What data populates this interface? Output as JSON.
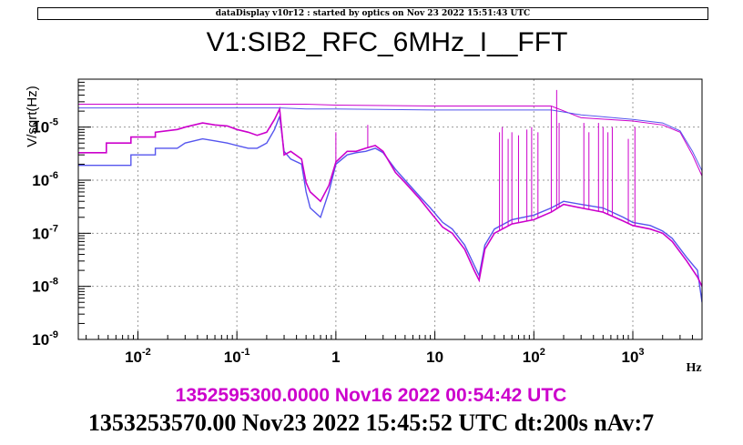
{
  "header": "dataDisplay v10r12 : started by optics on Nov 23 2022 15:51:43 UTC",
  "colors": {
    "reference": "#cc00cc",
    "current": "#5555ee"
  },
  "chart_data": {
    "type": "line",
    "title": "V1:SIB2_RFC_6MHz_I__FFT",
    "xlabel": "Hz",
    "ylabel": "V/sqrt(Hz)",
    "x_scale": "log",
    "y_scale": "log",
    "xlim": [
      0.0025,
      5000
    ],
    "ylim": [
      1e-09,
      8e-05
    ],
    "grid": true,
    "x_ticks": [
      0.01,
      0.1,
      1,
      10,
      100,
      1000
    ],
    "x_tick_labels": [
      {
        "base": "10",
        "exp": "-2"
      },
      {
        "base": "10",
        "exp": "-1"
      },
      {
        "base": "1",
        "exp": ""
      },
      {
        "base": "10",
        "exp": ""
      },
      {
        "base": "10",
        "exp": "2"
      },
      {
        "base": "10",
        "exp": "3"
      }
    ],
    "y_ticks": [
      1e-09,
      1e-08,
      1e-07,
      1e-06,
      1e-05
    ],
    "y_tick_labels": [
      {
        "base": "10",
        "exp": "-9"
      },
      {
        "base": "10",
        "exp": "-8"
      },
      {
        "base": "10",
        "exp": "-7"
      },
      {
        "base": "10",
        "exp": "-6"
      },
      {
        "base": "10",
        "exp": "-5"
      }
    ],
    "series": [
      {
        "name": "1352595300.0000 Nov16 2022 00:54:42 UTC",
        "color": "#cc00cc",
        "x": [
          0.0025,
          0.0048,
          0.0048,
          0.0085,
          0.0085,
          0.015,
          0.015,
          0.025,
          0.03,
          0.045,
          0.06,
          0.08,
          0.1,
          0.13,
          0.16,
          0.2,
          0.24,
          0.27,
          0.3,
          0.35,
          0.45,
          0.5,
          0.55,
          0.7,
          0.85,
          1.0,
          1.3,
          1.6,
          2.0,
          2.5,
          3.0,
          4.0,
          5.0,
          7.0,
          9.0,
          12.0,
          15.0,
          20.0,
          25.0,
          28.0,
          32.0,
          40.0,
          60.0,
          100.0,
          150.0,
          200.0,
          300.0,
          500.0,
          800.0,
          1000.0,
          1500.0,
          2000.0,
          2500.0,
          3500.0,
          4500.0,
          5000.0
        ],
        "y": [
          3.3e-06,
          3.3e-06,
          5e-06,
          5e-06,
          6.5e-06,
          6.5e-06,
          8e-06,
          9e-06,
          1e-05,
          1.2e-05,
          1.1e-05,
          1.05e-05,
          9e-06,
          8e-06,
          7e-06,
          8e-06,
          1.4e-05,
          2.2e-05,
          3e-06,
          3.5e-06,
          2.5e-06,
          9e-07,
          6e-07,
          4e-07,
          8e-07,
          2.2e-06,
          3.5e-06,
          3.5e-06,
          4e-06,
          4.5e-06,
          3.5e-06,
          1.4e-06,
          9e-07,
          4.5e-07,
          2.5e-07,
          1.3e-07,
          1e-07,
          5e-08,
          2e-08,
          1.3e-08,
          5e-08,
          1e-07,
          1.5e-07,
          1.8e-07,
          2.5e-07,
          3.5e-07,
          3e-07,
          2.5e-07,
          1.7e-07,
          1.4e-07,
          1.2e-07,
          1e-07,
          7e-08,
          3e-08,
          1.5e-08,
          1e-08
        ]
      },
      {
        "name": "1353253570.00 Nov23 2022 15:45:52 UTC dt:200s nAv:7",
        "color": "#5555ee",
        "x": [
          0.0025,
          0.0085,
          0.0085,
          0.015,
          0.015,
          0.025,
          0.03,
          0.045,
          0.06,
          0.08,
          0.1,
          0.13,
          0.16,
          0.2,
          0.24,
          0.27,
          0.3,
          0.35,
          0.45,
          0.5,
          0.55,
          0.7,
          0.85,
          1.0,
          1.3,
          1.6,
          2.0,
          2.5,
          3.0,
          4.0,
          5.0,
          7.0,
          9.0,
          12.0,
          15.0,
          20.0,
          25.0,
          28.0,
          32.0,
          40.0,
          60.0,
          100.0,
          150.0,
          200.0,
          300.0,
          500.0,
          800.0,
          1000.0,
          1500.0,
          2000.0,
          2500.0,
          3500.0,
          4500.0,
          5000.0
        ],
        "y": [
          1.9e-06,
          1.9e-06,
          3e-06,
          3e-06,
          4e-06,
          4e-06,
          5e-06,
          6e-06,
          5.5e-06,
          5e-06,
          4.5e-06,
          4e-06,
          4e-06,
          5e-06,
          9e-06,
          1.6e-05,
          3.5e-06,
          2.5e-06,
          2e-06,
          6e-07,
          3e-07,
          2e-07,
          6e-07,
          2e-06,
          3e-06,
          3.3e-06,
          3.5e-06,
          4e-06,
          3.3e-06,
          1.6e-06,
          1e-06,
          5e-07,
          3e-07,
          1.6e-07,
          1.2e-07,
          6e-08,
          2.5e-08,
          1.6e-08,
          6e-08,
          1.2e-07,
          1.8e-07,
          2.2e-07,
          3e-07,
          4e-07,
          3.5e-07,
          3e-07,
          2e-07,
          1.6e-07,
          1.4e-07,
          1.1e-07,
          8e-08,
          3.5e-08,
          2e-08,
          5e-09
        ]
      }
    ],
    "rms_lines": [
      {
        "series": "1352595300.0000 Nov16 2022 00:54:42 UTC",
        "color": "#cc00cc",
        "x": [
          0.0025,
          0.28,
          0.5,
          1.0,
          10.0,
          100.0,
          150.0,
          300.0,
          1000.0,
          2000.0,
          3000.0,
          4000.0,
          5000.0
        ],
        "y": [
          2.7e-05,
          2.7e-05,
          2.7e-05,
          2.6e-05,
          2.5e-05,
          2.5e-05,
          2.5e-05,
          1.5e-05,
          1.3e-05,
          1.1e-05,
          8e-06,
          3e-06,
          1.2e-06
        ]
      },
      {
        "series": "1353253570.00 Nov23 2022 15:45:52 UTC dt:200s nAv:7",
        "color": "#5555ee",
        "x": [
          0.0025,
          0.28,
          0.5,
          1.0,
          10.0,
          100.0,
          150.0,
          300.0,
          1000.0,
          2000.0,
          3000.0,
          4000.0,
          5000.0
        ],
        "y": [
          2.3e-05,
          2.3e-05,
          2.2e-05,
          2.2e-05,
          2.1e-05,
          2.1e-05,
          2.1e-05,
          1.7e-05,
          1.4e-05,
          1.2e-05,
          8.5e-06,
          3.5e-06,
          1.5e-06
        ]
      }
    ],
    "spikes": {
      "color": "#cc00cc",
      "x": [
        1.0,
        2.1,
        45,
        48,
        55,
        60,
        70,
        85,
        95,
        110,
        150,
        170,
        180,
        320,
        360,
        450,
        500,
        560,
        620,
        900,
        1050
      ],
      "y": [
        8e-06,
        1.1e-05,
        8e-06,
        1e-05,
        6e-06,
        8e-06,
        7e-06,
        9e-06,
        1e-05,
        8e-06,
        2.5e-05,
        5e-05,
        1.2e-05,
        1.2e-05,
        8e-06,
        1.2e-05,
        1e-05,
        8e-06,
        1e-05,
        6e-06,
        1e-05
      ]
    }
  }
}
